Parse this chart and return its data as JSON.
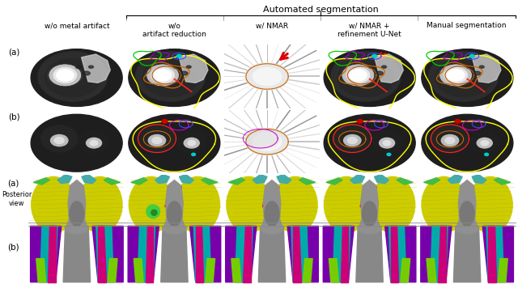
{
  "title": "Automated segmentation",
  "col_headers": [
    "w/o metal artifact",
    "w/o\nartifact reduction",
    "w/ NMAR",
    "w/ NMAR +\nrefinement U-Net",
    "Manual segmentation"
  ],
  "row_labels_top": [
    "(a)",
    "(b)"
  ],
  "row_label_bottom": "Posterior\nview",
  "row_labels_bottom": [
    "(a)",
    "(b)"
  ],
  "background_color": "#ffffff",
  "text_color": "#000000",
  "arrow_color": "#dd0000",
  "header_fontsize": 6.5,
  "title_fontsize": 8.0,
  "label_fontsize": 7.5,
  "fig_width": 6.4,
  "fig_height": 3.67,
  "dpi": 100,
  "posterior_bg": "#d0d0d0",
  "yellow_muscle": "#cccc00",
  "gray_spine": "#aaaaaa",
  "cyan_top": "#44aaaa",
  "green_accent": "#44aa44",
  "purple_thigh": "#7700aa",
  "cyan_thigh": "#00bbbb",
  "magenta_thigh": "#cc0077",
  "lime_thigh": "#88cc00",
  "posterior_line_color": "#888888"
}
